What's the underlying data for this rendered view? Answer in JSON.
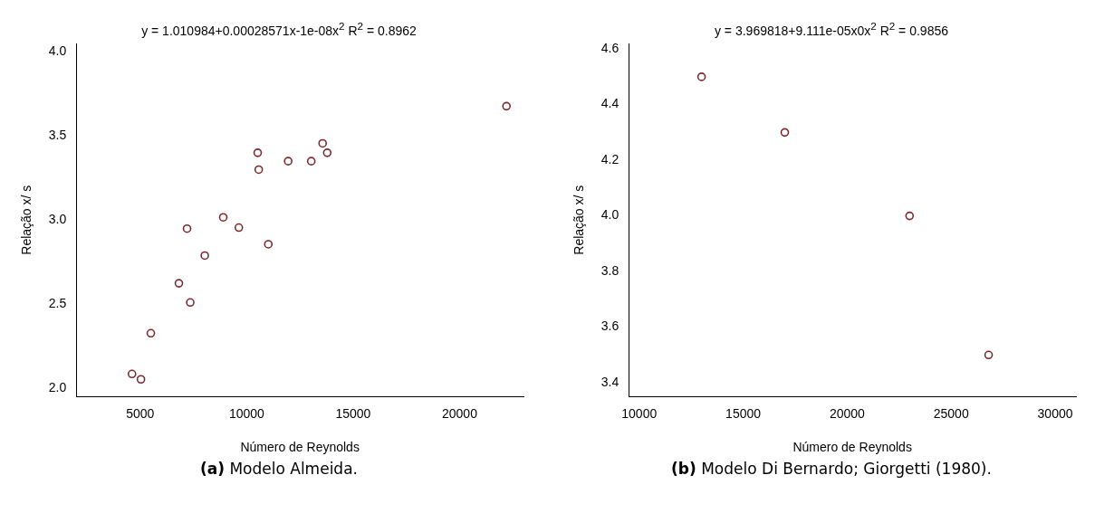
{
  "chart_data": [
    {
      "type": "scatter",
      "xlabel": "Número de Reynolds",
      "ylabel": "Relação x/ s",
      "color": "#7a2a2f",
      "marker": "circle",
      "grid": false,
      "legend": false,
      "x": [
        4615,
        5035,
        5500,
        6817,
        7350,
        7200,
        8033,
        8900,
        9633,
        10517,
        10567,
        11017,
        11950,
        13033,
        13567,
        13783,
        22200
      ],
      "values": [
        2.085,
        2.053,
        2.327,
        2.624,
        2.51,
        2.949,
        2.789,
        3.016,
        2.955,
        3.4,
        3.3,
        2.856,
        3.35,
        3.35,
        3.456,
        3.4,
        3.677
      ],
      "xlim": [
        2000,
        23000
      ],
      "xticks": [
        5000,
        10000,
        15000,
        20000
      ],
      "ylim": [
        1.95,
        4.05
      ],
      "yticks": [
        {
          "value": 2,
          "label": "2.0"
        },
        2.5,
        {
          "value": 3,
          "label": "3.0"
        },
        3.5,
        {
          "value": 4,
          "label": "4.0"
        }
      ],
      "annotations": [
        "y = 1.010984+0.00028571x-1e-08x$^{2}$  R$^{2}$ = 0.8962",
        "(a) Modelo Almeida."
      ]
    },
    {
      "type": "scatter",
      "xlabel": "Número de Reynolds",
      "ylabel": "Relação x/ s",
      "color": "#7a2a2f",
      "marker": "circle",
      "grid": false,
      "legend": false,
      "x": [
        13000,
        17000,
        23000,
        26800
      ],
      "values": [
        4.5,
        4.3,
        4.0,
        3.5
      ],
      "xlim": [
        9500,
        31000
      ],
      "xticks": [
        10000,
        15000,
        20000,
        25000,
        30000
      ],
      "ylim": [
        3.35,
        4.62
      ],
      "yticks": [
        3.4,
        3.6,
        3.8,
        {
          "value": 4,
          "label": "4.0"
        },
        4.2,
        4.4,
        4.6
      ],
      "annotations": [
        "y = 3.969818+9.111e-05x0x$^{2}$  R$^{2}$ = 0.9856",
        "(b) Modelo Di Bernardo; Giorgetti (1980)."
      ]
    }
  ]
}
